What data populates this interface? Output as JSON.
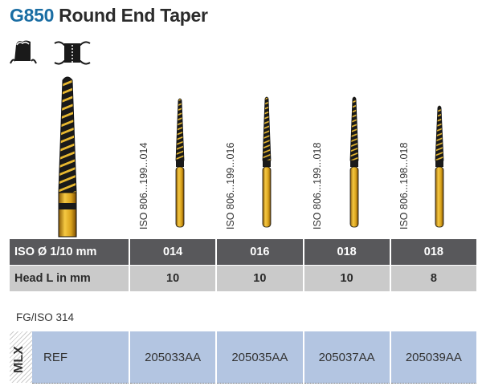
{
  "title": {
    "code": "G850",
    "name": "Round End Taper"
  },
  "icons": [
    "crown-preparation-icon",
    "tooth-separation-icon"
  ],
  "colors": {
    "code_blue": "#1a6da3",
    "header_row": "#58585b",
    "head_row": "#cacaca",
    "ref_row": "#b3c5e1",
    "gold": "#d9a21b"
  },
  "burs": [
    {
      "iso": "ISO 806...199...014"
    },
    {
      "iso": "ISO 806...199...016"
    },
    {
      "iso": "ISO 806...199...018"
    },
    {
      "iso": "ISO 806...198...018"
    }
  ],
  "spec_table": {
    "row1_label": "ISO Ø 1/10 mm",
    "row1": [
      "014",
      "016",
      "018",
      "018"
    ],
    "row2_label": "Head L in mm",
    "row2": [
      "10",
      "10",
      "10",
      "8"
    ]
  },
  "shank_type": "FG/ISO 314",
  "ref_table": {
    "badge": "MLX",
    "label": "REF",
    "values": [
      "205033AA",
      "205035AA",
      "205037AA",
      "205039AA"
    ]
  }
}
